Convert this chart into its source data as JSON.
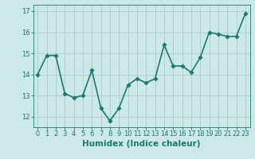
{
  "x": [
    0,
    1,
    2,
    3,
    4,
    5,
    6,
    7,
    8,
    9,
    10,
    11,
    12,
    13,
    14,
    15,
    16,
    17,
    18,
    19,
    20,
    21,
    22,
    23
  ],
  "y": [
    14.0,
    14.9,
    14.9,
    13.1,
    12.9,
    13.0,
    14.2,
    12.4,
    11.8,
    12.4,
    13.5,
    13.8,
    13.6,
    13.8,
    15.4,
    14.4,
    14.4,
    14.1,
    14.8,
    16.0,
    15.9,
    15.8,
    15.8,
    16.9
  ],
  "line_color": "#1a7a6e",
  "marker_color": "#1a7a6e",
  "bg_color": "#cce8e8",
  "grid_color": "#aacccc",
  "xlabel": "Humidex (Indice chaleur)",
  "ylim": [
    11.5,
    17.3
  ],
  "xlim": [
    -0.5,
    23.5
  ],
  "yticks": [
    12,
    13,
    14,
    15,
    16,
    17
  ],
  "xticks": [
    0,
    1,
    2,
    3,
    4,
    5,
    6,
    7,
    8,
    9,
    10,
    11,
    12,
    13,
    14,
    15,
    16,
    17,
    18,
    19,
    20,
    21,
    22,
    23
  ],
  "linewidth": 1.2,
  "markersize": 2.8,
  "xlabel_fontsize": 7.5,
  "tick_fontsize": 6.0
}
